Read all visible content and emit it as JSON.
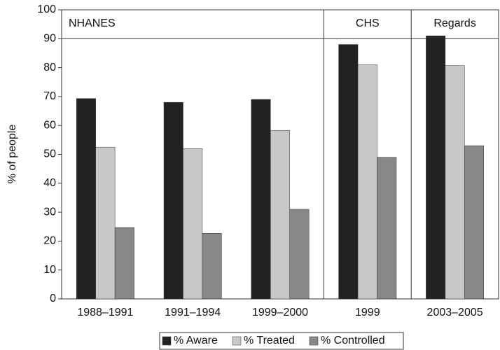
{
  "chart_data": {
    "type": "bar",
    "y_label": "% of people",
    "categories": [
      "1988–1991",
      "1991–1994",
      "1999–2000",
      "1999",
      "2003–2005"
    ],
    "annotations": [
      "NHANES",
      "CHS",
      "Regards"
    ],
    "series": [
      {
        "name": "% Aware",
        "color": "#222222",
        "values": [
          69.3,
          68,
          69,
          88,
          91
        ]
      },
      {
        "name": "% Treated",
        "color": "#c8c8c8",
        "values": [
          52.5,
          52,
          58.3,
          81,
          80.7
        ]
      },
      {
        "name": "% Controlled",
        "color": "#888888",
        "values": [
          24.7,
          22.7,
          31,
          49,
          53
        ]
      }
    ],
    "ylim": [
      0,
      100
    ],
    "yticks": [
      0,
      10,
      20,
      30,
      40,
      50,
      60,
      70,
      80,
      90,
      100
    ],
    "legend": "bottom"
  }
}
